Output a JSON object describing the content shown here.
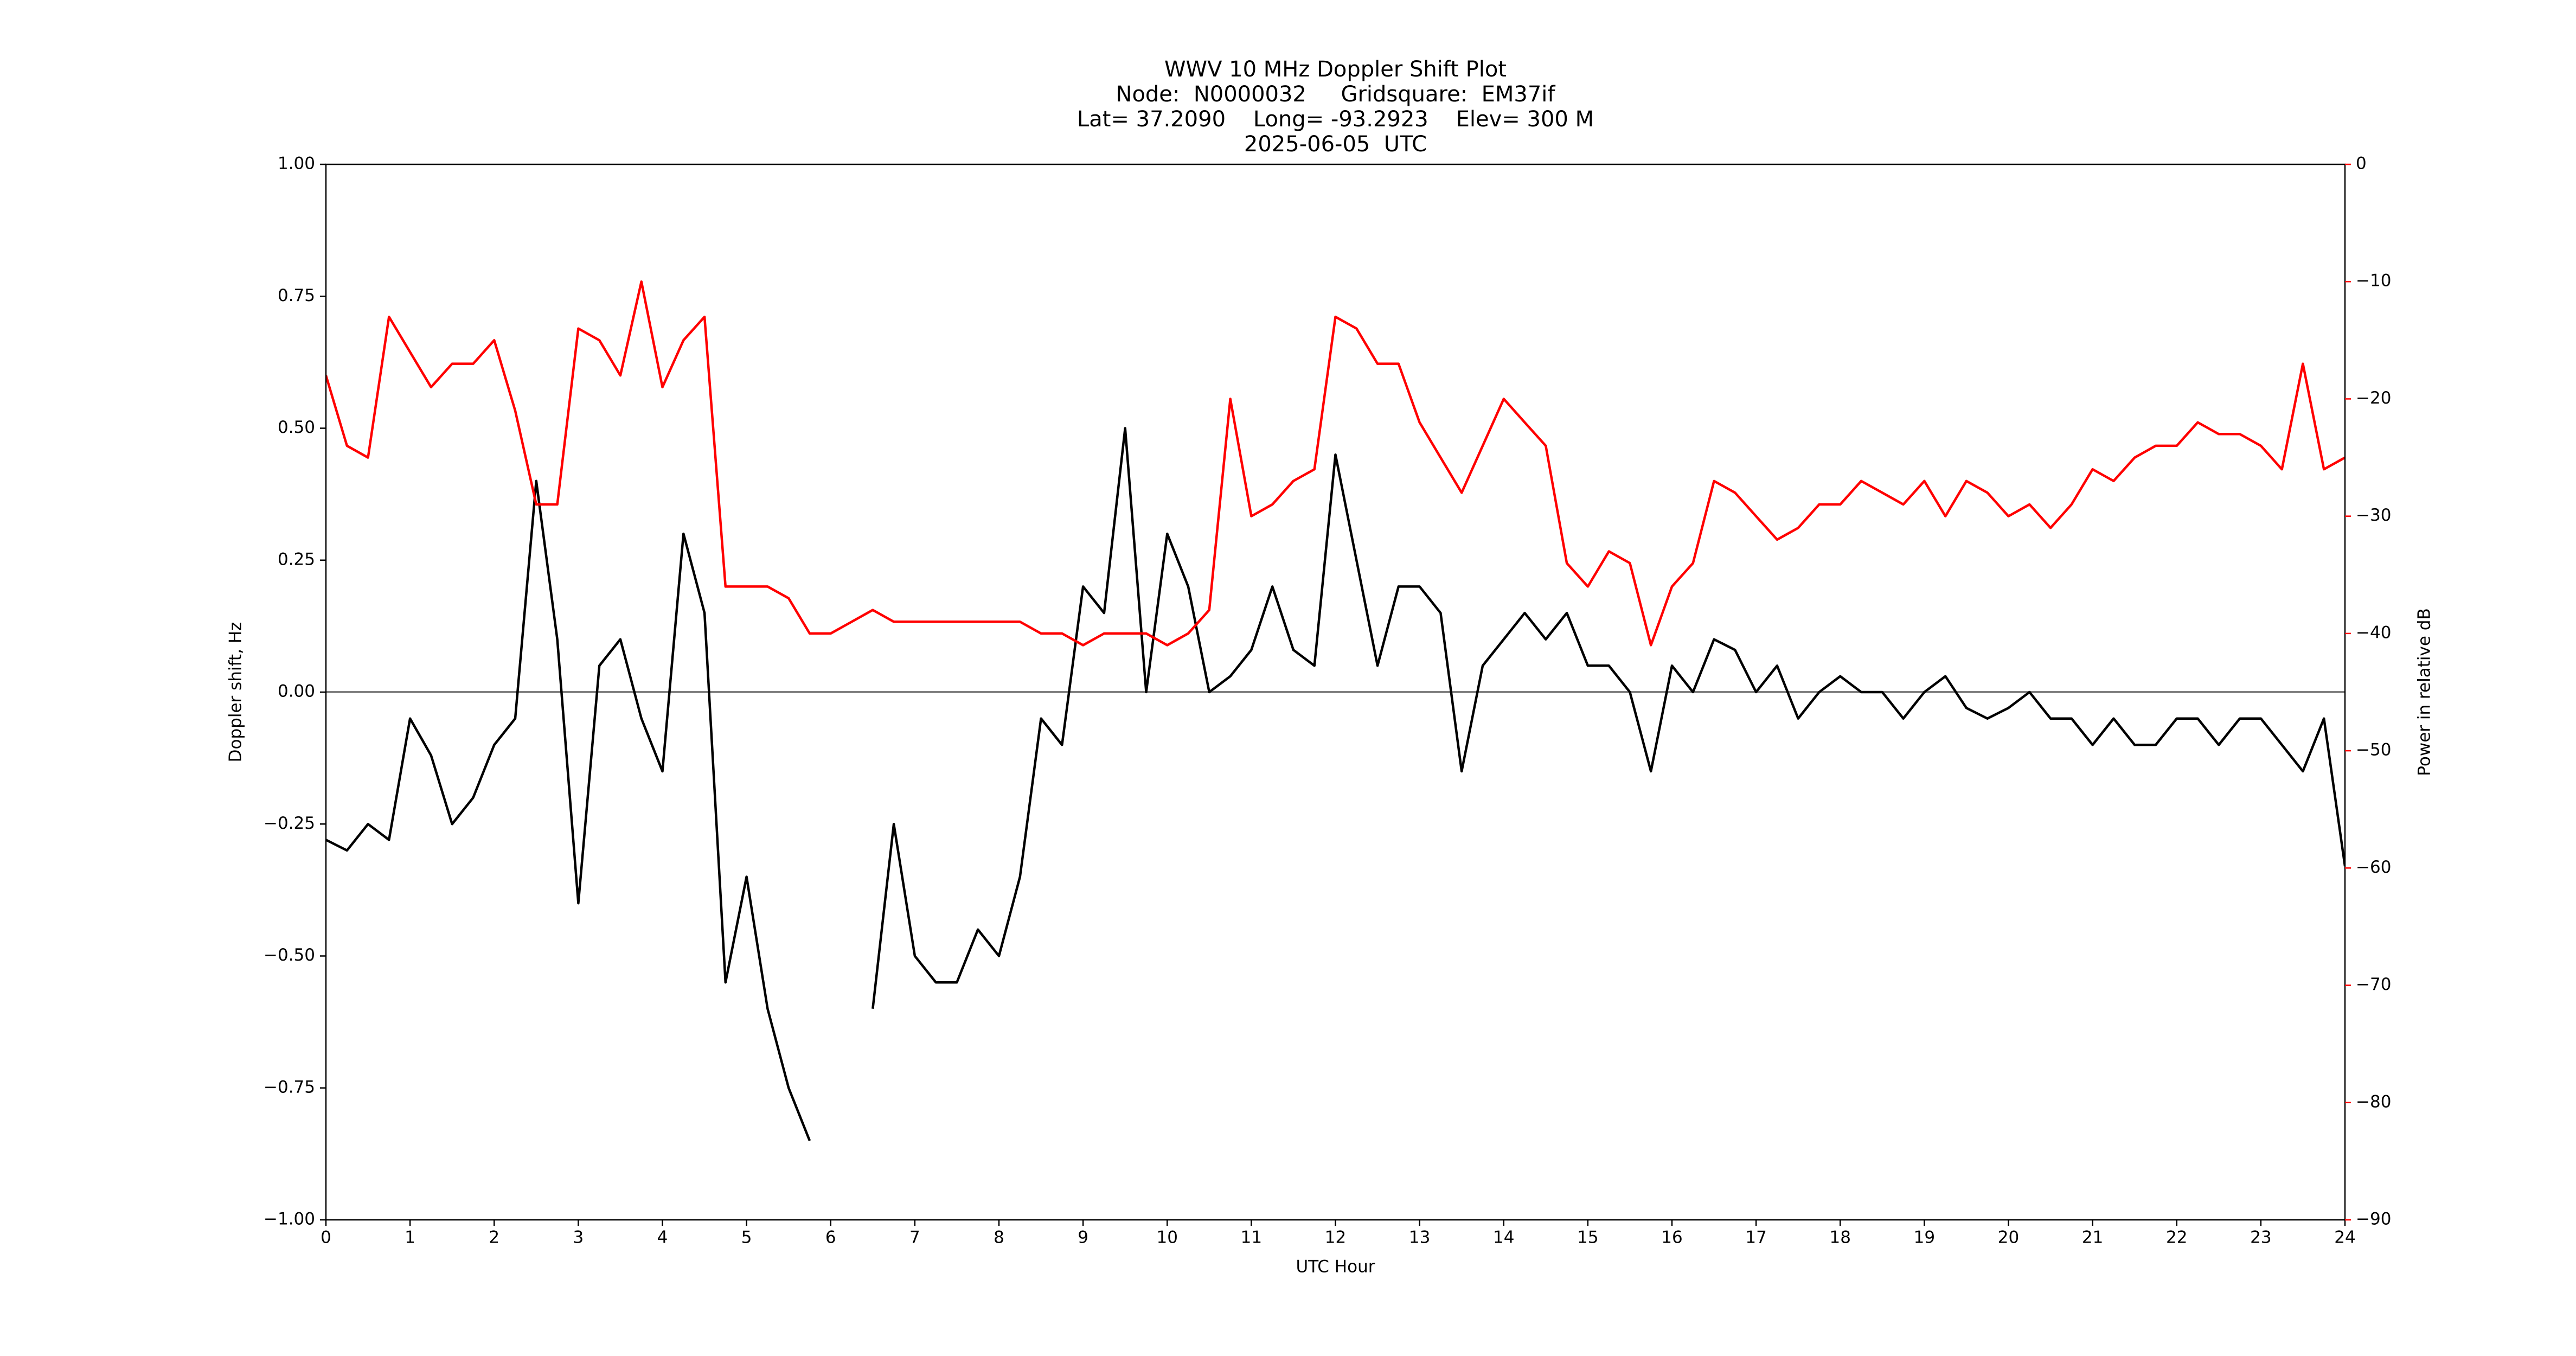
{
  "chart_data": {
    "type": "line",
    "title": [
      "WWV 10 MHz Doppler Shift Plot",
      "Node:  N0000032     Gridsquare:  EM37if",
      "Lat= 37.2090    Long= -93.2923    Elev= 300 M",
      "2025-06-05  UTC"
    ],
    "x_label": "UTC Hour",
    "y_label": "Doppler shift, Hz",
    "y2_label": "Power in relative dB",
    "x": [
      0,
      0.25,
      0.5,
      0.75,
      1,
      1.25,
      1.5,
      1.75,
      2,
      2.25,
      2.5,
      2.75,
      3,
      3.25,
      3.5,
      3.75,
      4,
      4.25,
      4.5,
      4.75,
      5,
      5.25,
      5.5,
      5.75,
      6,
      6.25,
      6.5,
      6.75,
      7,
      7.25,
      7.5,
      7.75,
      8,
      8.25,
      8.5,
      8.75,
      9,
      9.25,
      9.5,
      9.75,
      10,
      10.25,
      10.5,
      10.75,
      11,
      11.25,
      11.5,
      11.75,
      12,
      12.25,
      12.5,
      12.75,
      13,
      13.25,
      13.5,
      13.75,
      14,
      14.25,
      14.5,
      14.75,
      15,
      15.25,
      15.5,
      15.75,
      16,
      16.25,
      16.5,
      16.75,
      17,
      17.25,
      17.5,
      17.75,
      18,
      18.25,
      18.5,
      18.75,
      19,
      19.25,
      19.5,
      19.75,
      20,
      20.25,
      20.5,
      20.75,
      21,
      21.25,
      21.5,
      21.75,
      22,
      22.25,
      22.5,
      22.75,
      23,
      23.25,
      23.5,
      23.75,
      24
    ],
    "series": [
      {
        "color": "#000000",
        "values": [
          -0.28,
          -0.3,
          -0.25,
          -0.28,
          -0.05,
          -0.12,
          -0.25,
          -0.2,
          -0.1,
          -0.05,
          0.4,
          0.1,
          -0.4,
          0.05,
          0.1,
          -0.05,
          -0.15,
          0.3,
          0.15,
          -0.55,
          -0.35,
          -0.6,
          -0.75,
          -0.85,
          null,
          null,
          -0.6,
          -0.25,
          -0.5,
          -0.55,
          -0.55,
          -0.45,
          -0.5,
          -0.35,
          -0.05,
          -0.1,
          0.2,
          0.15,
          0.5,
          0,
          0.3,
          0.2,
          0,
          0.03,
          0.08,
          0.2,
          0.08,
          0.05,
          0.45,
          0.25,
          0.05,
          0.2,
          0.2,
          0.15,
          -0.15,
          0.05,
          0.1,
          0.15,
          0.1,
          0.15,
          0.05,
          0.05,
          0,
          -0.15,
          0.05,
          0,
          0.1,
          0.08,
          0,
          0.05,
          -0.05,
          0,
          0.03,
          0,
          0,
          -0.05,
          0,
          0.03,
          -0.03,
          -0.05,
          -0.03,
          0,
          -0.05,
          -0.05,
          -0.1,
          -0.05,
          -0.1,
          -0.1,
          -0.05,
          -0.05,
          -0.1,
          -0.05,
          -0.05,
          -0.1,
          -0.15,
          -0.05,
          -0.33
        ]
      },
      {
        "color": "#ff0000",
        "axis": "y2",
        "values": [
          -18,
          -24,
          -25,
          -13,
          -16,
          -19,
          -17,
          -17,
          -15,
          -21,
          -29,
          -29,
          -14,
          -15,
          -18,
          -10,
          -19,
          -15,
          -13,
          -36,
          -36,
          -36,
          -37,
          -40,
          -40,
          -39,
          -38,
          -39,
          -39,
          -39,
          -39,
          -39,
          -39,
          -39,
          -40,
          -40,
          -41,
          -40,
          -40,
          -40,
          -41,
          -40,
          -38,
          -20,
          -30,
          -29,
          -27,
          -26,
          -13,
          -14,
          -17,
          -17,
          -22,
          -25,
          -28,
          -24,
          -20,
          -22,
          -24,
          -34,
          -36,
          -33,
          -34,
          -41,
          -36,
          -34,
          -27,
          -28,
          -30,
          -32,
          -31,
          -29,
          -29,
          -27,
          -28,
          -29,
          -27,
          -30,
          -27,
          -28,
          -30,
          -29,
          -31,
          -29,
          -26,
          -27,
          -25,
          -24,
          -24,
          -22,
          -23,
          -23,
          -24,
          -26,
          -17,
          -26,
          -25
        ]
      }
    ],
    "hline": 0,
    "xlim": [
      0,
      24
    ],
    "xticks": [
      0,
      1,
      2,
      3,
      4,
      5,
      6,
      7,
      8,
      9,
      10,
      11,
      12,
      13,
      14,
      15,
      16,
      17,
      18,
      19,
      20,
      21,
      22,
      23,
      24
    ],
    "ylim": [
      -1,
      1
    ],
    "yticks": [
      {
        "value": -1,
        "label": "−1.00"
      },
      {
        "value": -0.75,
        "label": "−0.75"
      },
      {
        "value": -0.5,
        "label": "−0.50"
      },
      {
        "value": -0.25,
        "label": "−0.25"
      },
      {
        "value": 0,
        "label": "0.00"
      },
      {
        "value": 0.25,
        "label": "0.25"
      },
      {
        "value": 0.5,
        "label": "0.50"
      },
      {
        "value": 0.75,
        "label": "0.75"
      },
      {
        "value": 1,
        "label": "1.00"
      }
    ],
    "y2lim": [
      -90,
      0
    ],
    "y2ticks": [
      {
        "value": -90,
        "label": "−90"
      },
      {
        "value": -80,
        "label": "−80"
      },
      {
        "value": -70,
        "label": "−70"
      },
      {
        "value": -60,
        "label": "−60"
      },
      {
        "value": -50,
        "label": "−50"
      },
      {
        "value": -40,
        "label": "−40"
      },
      {
        "value": -30,
        "label": "−30"
      },
      {
        "value": -20,
        "label": "−20"
      },
      {
        "value": -10,
        "label": "−10"
      },
      0
    ]
  }
}
